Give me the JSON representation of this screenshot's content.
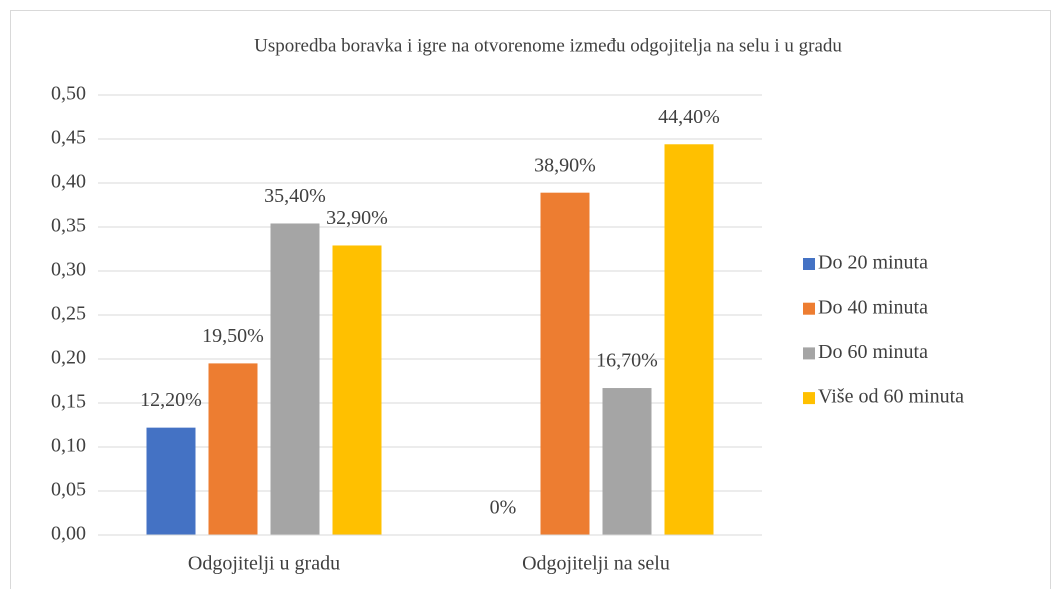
{
  "chart_data": {
    "type": "bar",
    "title": "Usporedba boravka i igre na otvorenome između odgojitelja na selu i u gradu",
    "categories": [
      "Odgojitelji u gradu",
      "Odgojitelji na selu"
    ],
    "series": [
      {
        "name": "Do 20 minuta",
        "color": "#4472c4",
        "values": [
          0.122,
          0
        ],
        "value_labels": [
          "12,20%",
          "0%"
        ]
      },
      {
        "name": "Do 40 minuta",
        "color": "#ed7d31",
        "values": [
          0.195,
          0.389
        ],
        "value_labels": [
          "19,50%",
          "38,90%"
        ]
      },
      {
        "name": "Do 60 minuta",
        "color": "#a5a5a5",
        "values": [
          0.354,
          0.167
        ],
        "value_labels": [
          "35,40%",
          "16,70%"
        ]
      },
      {
        "name": "Više od 60 minuta",
        "color": "#ffc000",
        "values": [
          0.329,
          0.444
        ],
        "value_labels": [
          "32,90%",
          "44,40%"
        ]
      }
    ],
    "ylim": [
      0,
      0.5
    ],
    "yticks": [
      {
        "value": 0,
        "label": "0,00"
      },
      {
        "value": 0.05,
        "label": "0,05"
      },
      {
        "value": 0.1,
        "label": "0,10"
      },
      {
        "value": 0.15,
        "label": "0,15"
      },
      {
        "value": 0.2,
        "label": "0,20"
      },
      {
        "value": 0.25,
        "label": "0,25"
      },
      {
        "value": 0.3,
        "label": "0,30"
      },
      {
        "value": 0.35,
        "label": "0,35"
      },
      {
        "value": 0.4,
        "label": "0,40"
      },
      {
        "value": 0.45,
        "label": "0,45"
      },
      {
        "value": 0.5,
        "label": "0,50"
      }
    ],
    "grid": true,
    "legend": "right"
  }
}
